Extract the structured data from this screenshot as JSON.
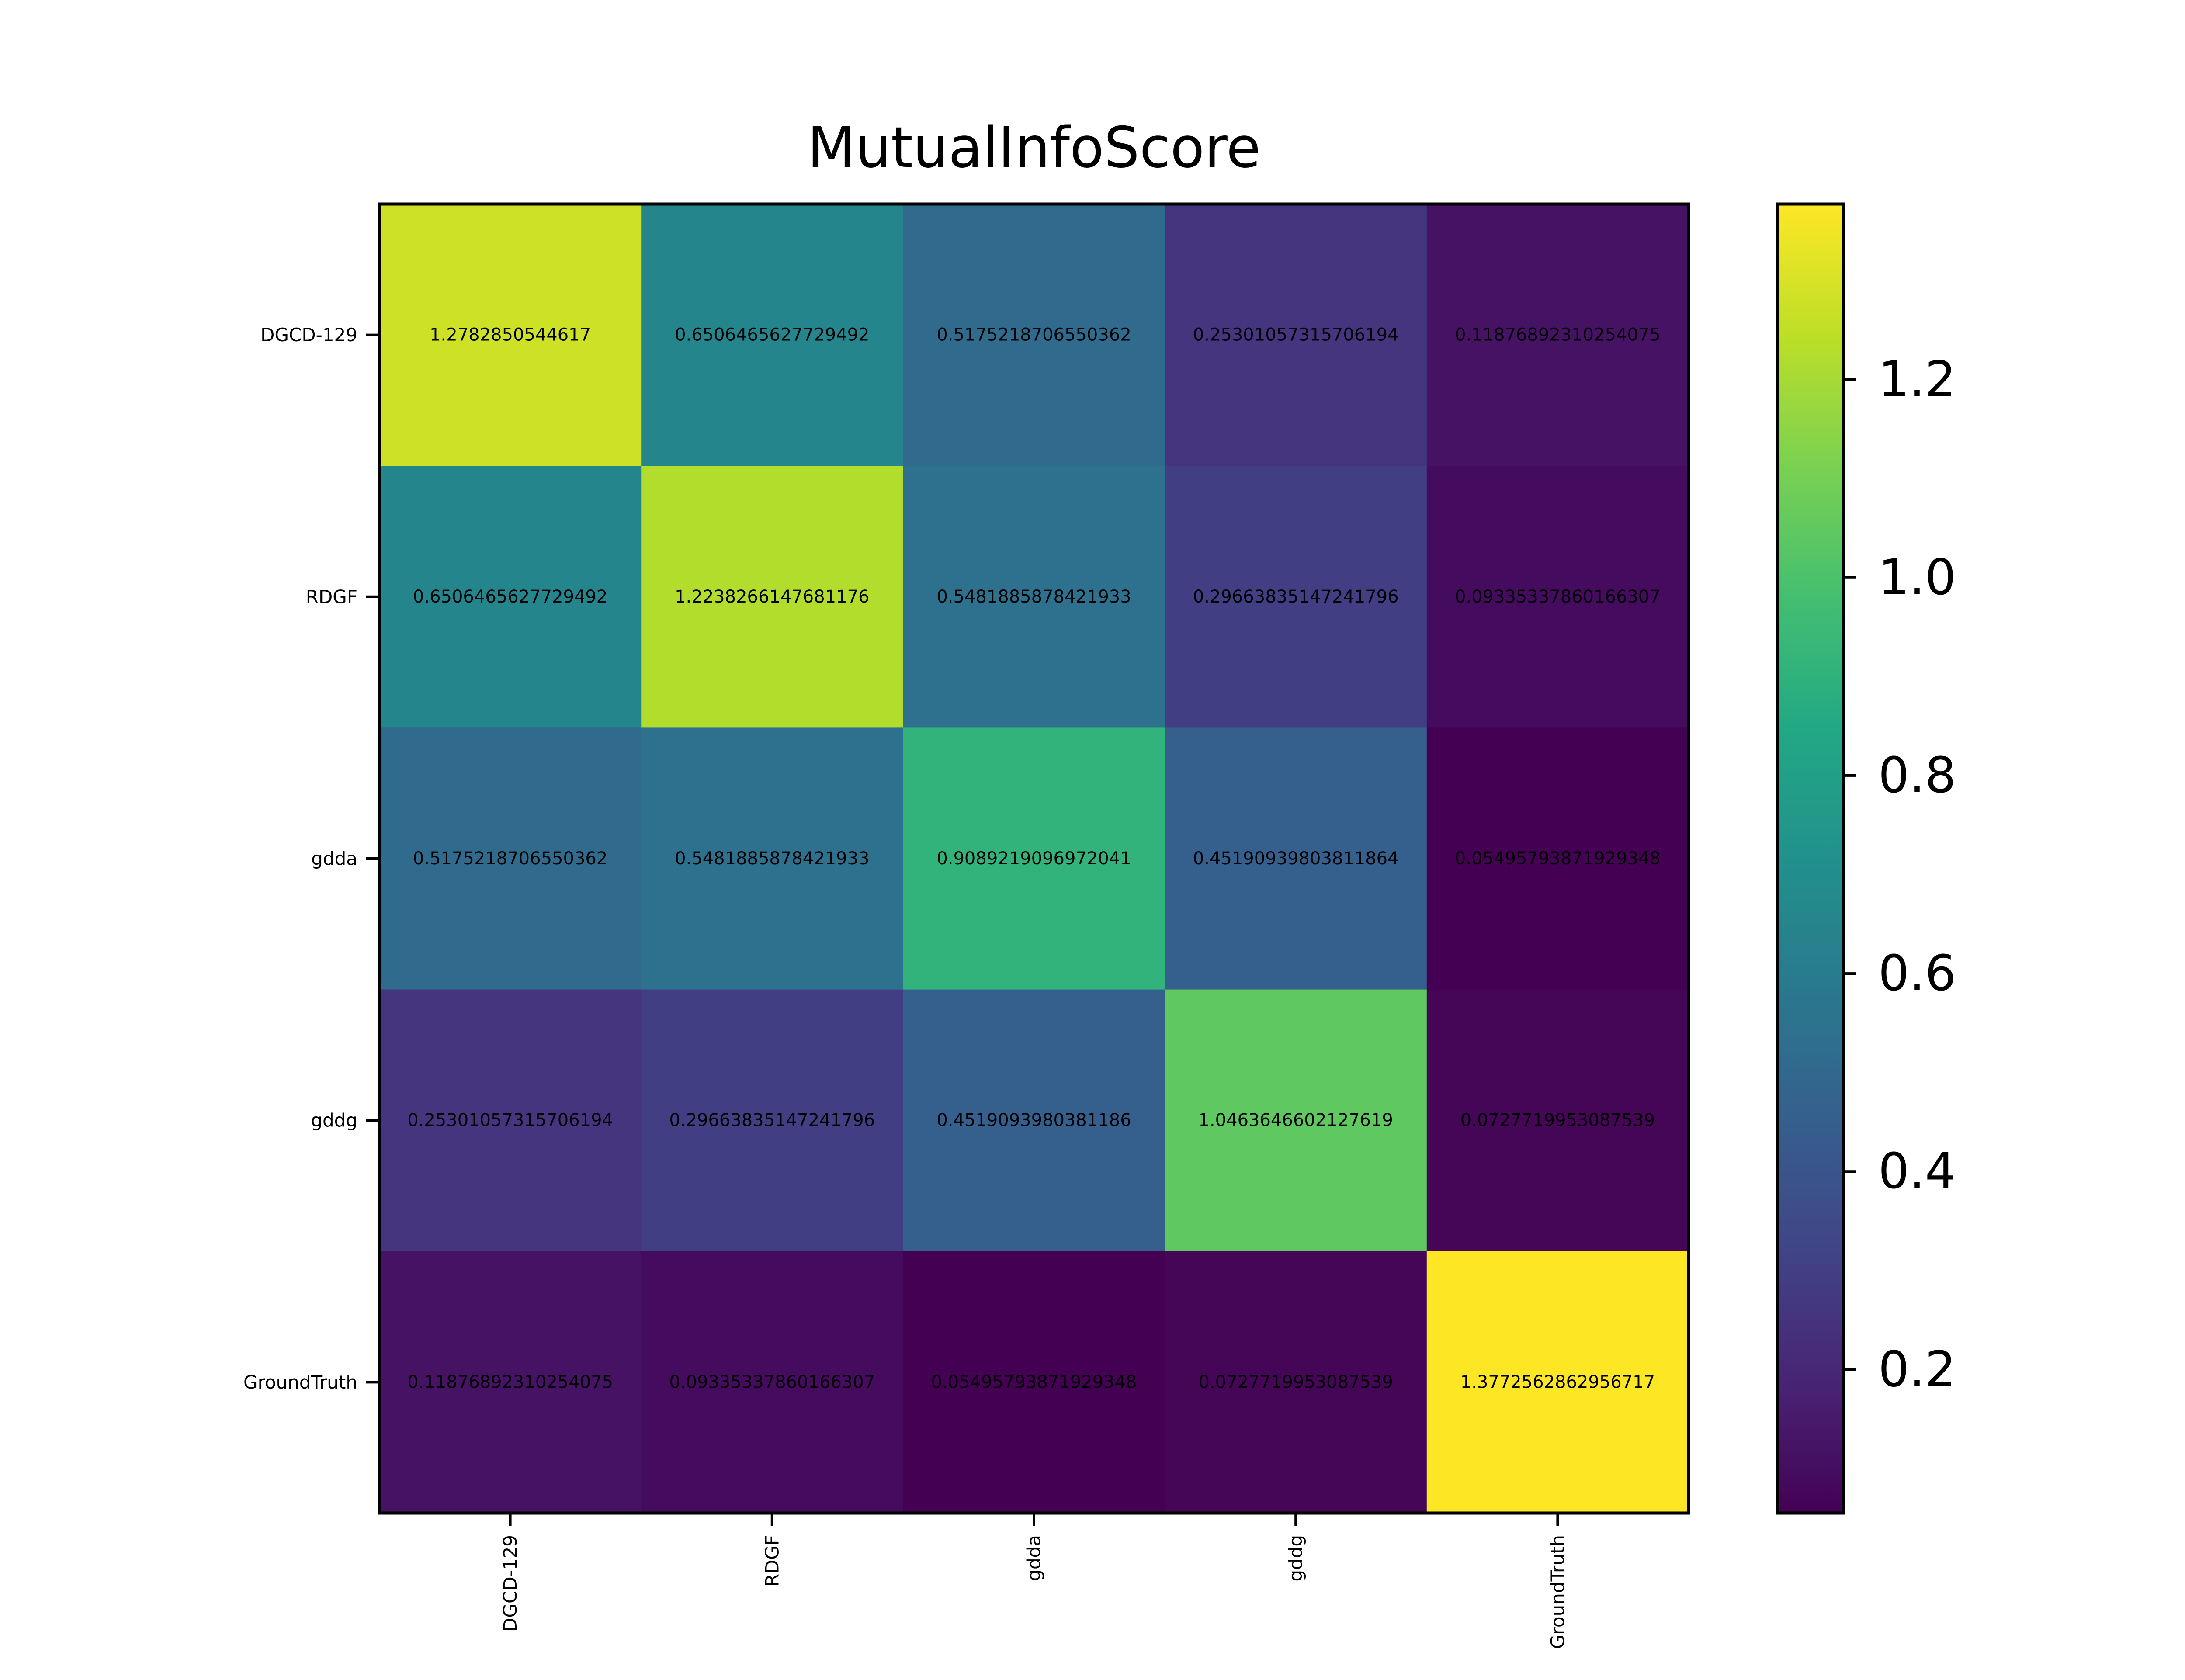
{
  "chart_data": {
    "type": "heatmap",
    "title": "MutualInfoScore",
    "xlabel": "",
    "ylabel": "",
    "rows": [
      "DGCD-129",
      "RDGF",
      "gdda",
      "gddg",
      "GroundTruth"
    ],
    "columns": [
      "DGCD-129",
      "RDGF",
      "gdda",
      "gddg",
      "GroundTruth"
    ],
    "values": [
      [
        1.2782850544617,
        0.6506465627729492,
        0.5175218706550362,
        0.25301057315706194,
        0.11876892310254075
      ],
      [
        0.6506465627729492,
        1.2238266147681176,
        0.5481885878421933,
        0.29663835147241796,
        0.09335337860166307
      ],
      [
        0.5175218706550362,
        0.5481885878421933,
        0.9089219096972041,
        0.45190939803811864,
        0.05495793871929348
      ],
      [
        0.25301057315706194,
        0.29663835147241796,
        0.4519093980381186,
        1.0463646602127619,
        0.0727719953087539
      ],
      [
        0.11876892310254075,
        0.09335337860166307,
        0.05495793871929348,
        0.0727719953087539,
        1.3772562862956717
      ]
    ],
    "cell_labels": [
      [
        "1.2782850544617",
        "0.6506465627729492",
        "0.5175218706550362",
        "0.25301057315706194",
        "0.11876892310254075"
      ],
      [
        "0.6506465627729492",
        "1.2238266147681176",
        "0.5481885878421933",
        "0.29663835147241796",
        "0.09335337860166307"
      ],
      [
        "0.5175218706550362",
        "0.5481885878421933",
        "0.9089219096972041",
        "0.45190939803811864",
        "0.05495793871929348"
      ],
      [
        "0.25301057315706194",
        "0.29663835147241796",
        "0.4519093980381186",
        "1.0463646602127619",
        "0.0727719953087539"
      ],
      [
        "0.11876892310254075",
        "0.09335337860166307",
        "0.05495793871929348",
        "0.0727719953087539",
        "1.3772562862956717"
      ]
    ],
    "colorbar": {
      "colormap": "viridis",
      "range": [
        0.05495793871929348,
        1.3772562862956717
      ],
      "ticks": [
        0.2,
        0.4,
        0.6,
        0.8,
        1.0,
        1.2
      ],
      "tick_labels": [
        "0.2",
        "0.4",
        "0.6",
        "0.8",
        "1.0",
        "1.2"
      ]
    },
    "x_tick_rotation": "vertical",
    "legend": "none",
    "grid": false
  }
}
